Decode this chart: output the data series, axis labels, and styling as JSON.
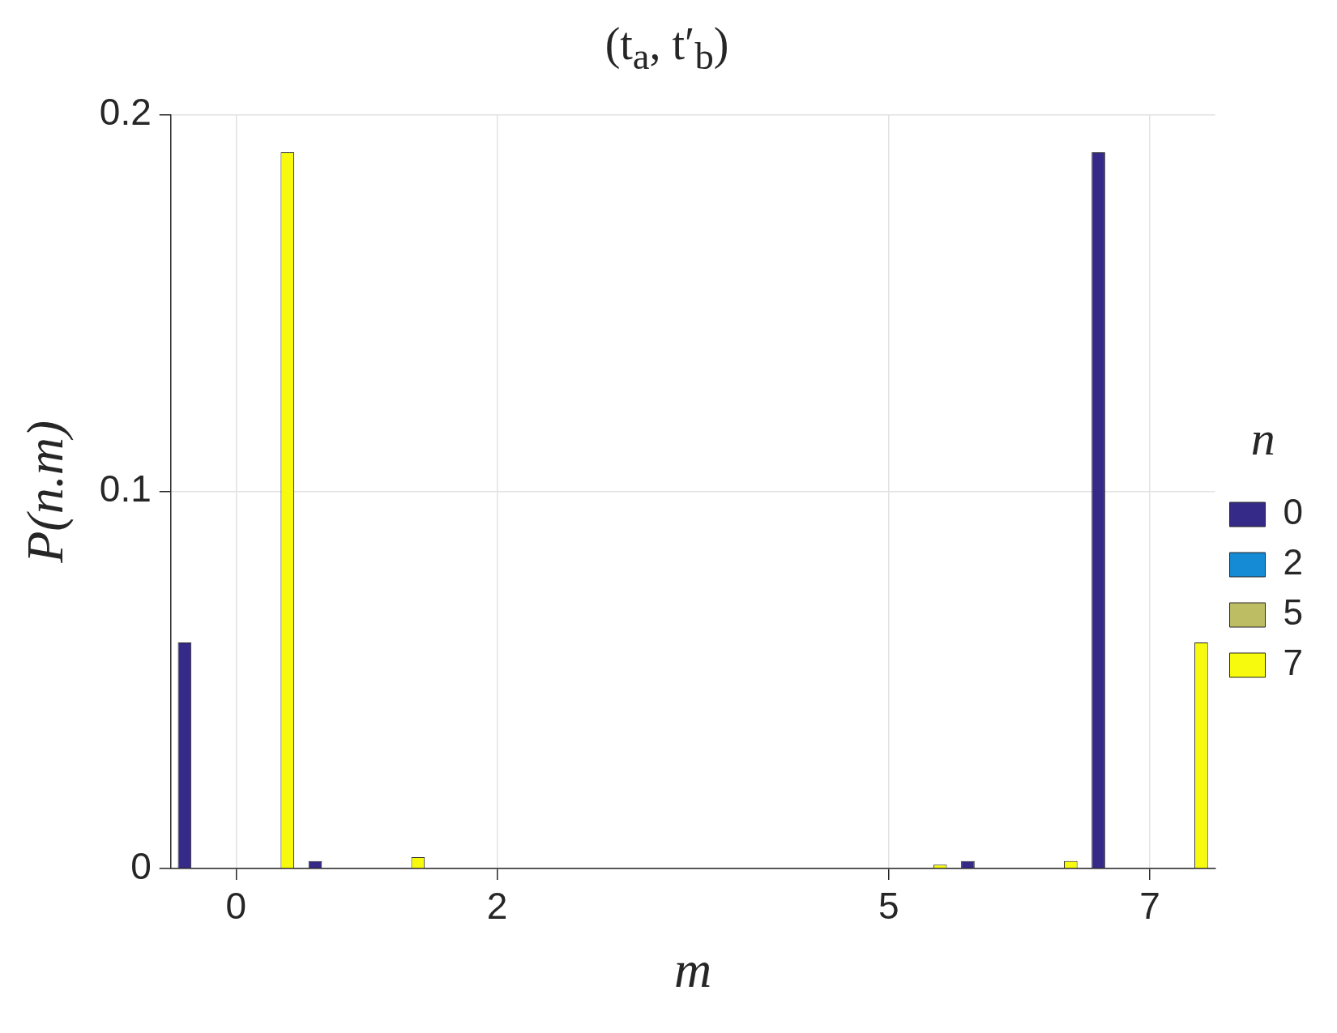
{
  "chart_data": {
    "type": "bar",
    "title": "(t$_{a}$, t′$_{b}$)",
    "xlabel": "m",
    "ylabel": "P(n.m)",
    "legend_title": "n",
    "categories": [
      "0",
      null,
      "2",
      null,
      null,
      "5",
      null,
      "7"
    ],
    "series": [
      {
        "name": "0",
        "color": "#352a87",
        "values": [
          0.06,
          0.002,
          0,
          0,
          0,
          0,
          0.002,
          0.19
        ]
      },
      {
        "color": "#0062e0",
        "values": [
          0,
          0,
          0,
          0,
          0,
          0,
          0,
          0
        ]
      },
      {
        "name": "2",
        "color": "#148bd4",
        "values": [
          0,
          0,
          0,
          0,
          0,
          0,
          0,
          0
        ]
      },
      {
        "color": "#0fb0b6",
        "values": [
          0,
          0,
          0,
          0,
          0,
          0,
          0,
          0
        ]
      },
      {
        "color": "#64be8a",
        "values": [
          0,
          0,
          0,
          0,
          0,
          0,
          0,
          0
        ]
      },
      {
        "name": "5",
        "color": "#bdbd63",
        "values": [
          0,
          0,
          0,
          0,
          0,
          0,
          0,
          0
        ]
      },
      {
        "color": "#fdbd3b",
        "values": [
          0,
          0,
          0,
          0,
          0,
          0,
          0,
          0
        ]
      },
      {
        "name": "7",
        "color": "#f8fa0d",
        "values": [
          0.19,
          0.003,
          0,
          0,
          0,
          0.001,
          0.002,
          0.06
        ]
      }
    ],
    "ylim": [
      0,
      0.2
    ],
    "yticks": [
      0,
      0.1,
      0.2
    ],
    "grid": true,
    "legend": "right"
  }
}
